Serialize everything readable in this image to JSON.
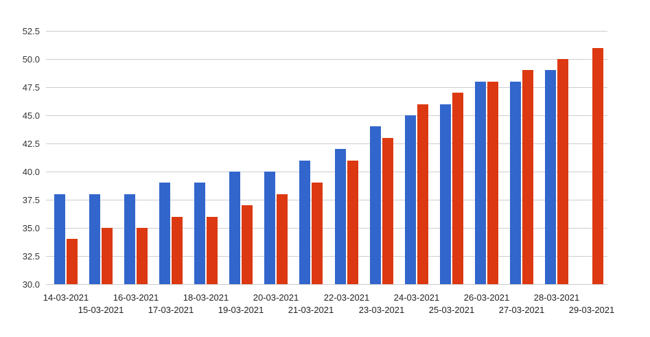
{
  "chart_data": {
    "type": "bar",
    "title": "",
    "xlabel": "",
    "ylabel": "",
    "legend_position": "none",
    "grid": true,
    "ylim": [
      30.0,
      52.5
    ],
    "ytick_step": 2.5,
    "ytick_labels": [
      "52.5",
      "50.0",
      "47.5",
      "45.0",
      "42.5",
      "40.0",
      "37.5",
      "35.0",
      "32.5",
      "30.0"
    ],
    "categories": [
      "14-03-2021",
      "15-03-2021",
      "16-03-2021",
      "17-03-2021",
      "18-03-2021",
      "19-03-2021",
      "20-03-2021",
      "21-03-2021",
      "22-03-2021",
      "23-03-2021",
      "24-03-2021",
      "25-03-2021",
      "26-03-2021",
      "27-03-2021",
      "28-03-2021",
      "29-03-2021"
    ],
    "x_label_rows": "staggered-two-rows",
    "series": [
      {
        "name": "blue-series",
        "color": "#3366CC",
        "values": [
          38,
          38,
          38,
          39,
          39,
          40,
          40,
          41,
          42,
          44,
          45,
          46,
          48,
          48,
          49,
          null
        ]
      },
      {
        "name": "red-series",
        "color": "#DC3912",
        "values": [
          34,
          35,
          35,
          36,
          36,
          37,
          38,
          39,
          41,
          43,
          46,
          47,
          48,
          49,
          50,
          51
        ]
      }
    ]
  },
  "colors": {
    "background": "#ffffff",
    "gridline": "#cccccc",
    "y_axis_label": "#333333",
    "x_axis_label": "#222222"
  }
}
